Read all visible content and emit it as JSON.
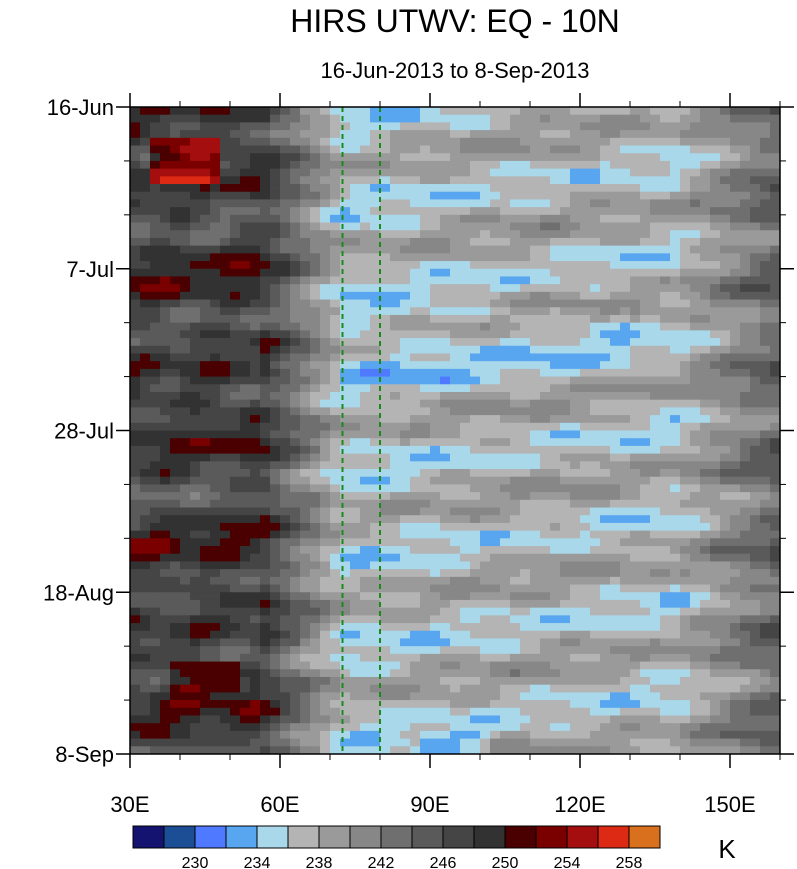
{
  "chart_data": {
    "type": "heatmap",
    "title": "HIRS UTWV: EQ - 10N",
    "subtitle": "16-Jun-2013 to 8-Sep-2013",
    "x_axis": {
      "range": [
        30,
        160
      ],
      "tick_values": [
        30,
        60,
        90,
        120,
        150
      ],
      "tick_labels": [
        "30E",
        "60E",
        "90E",
        "120E",
        "150E"
      ],
      "minor_step": 10
    },
    "y_axis": {
      "range_days": [
        0,
        84
      ],
      "inverted": true,
      "tick_days": [
        0,
        21,
        42,
        63,
        84
      ],
      "tick_labels": [
        "16-Jun",
        "7-Jul",
        "28-Jul",
        "18-Aug",
        "8-Sep"
      ],
      "minor_step_days": 7
    },
    "reference_lines": [
      {
        "lon": 72.5,
        "style": "dashed",
        "color": "#1a8a1a"
      },
      {
        "lon": 80,
        "style": "dashed",
        "color": "#1a8a1a"
      }
    ],
    "colorbar": {
      "units": "K",
      "levels": [
        228,
        230,
        232,
        234,
        236,
        238,
        240,
        242,
        244,
        246,
        248,
        250,
        252,
        254,
        256,
        258
      ],
      "label_values": [
        "230",
        "234",
        "238",
        "242",
        "246",
        "250",
        "254",
        "258"
      ],
      "colors": [
        "#141470",
        "#1c4e96",
        "#4f7aff",
        "#58a6f0",
        "#a8d8ea",
        "#b4b4b4",
        "#9a9a9a",
        "#878787",
        "#6f6f6f",
        "#5a5a5a",
        "#454545",
        "#323232",
        "#4a0000",
        "#7a0000",
        "#a50e0e",
        "#dc2a14",
        "#d8701e"
      ]
    }
  }
}
